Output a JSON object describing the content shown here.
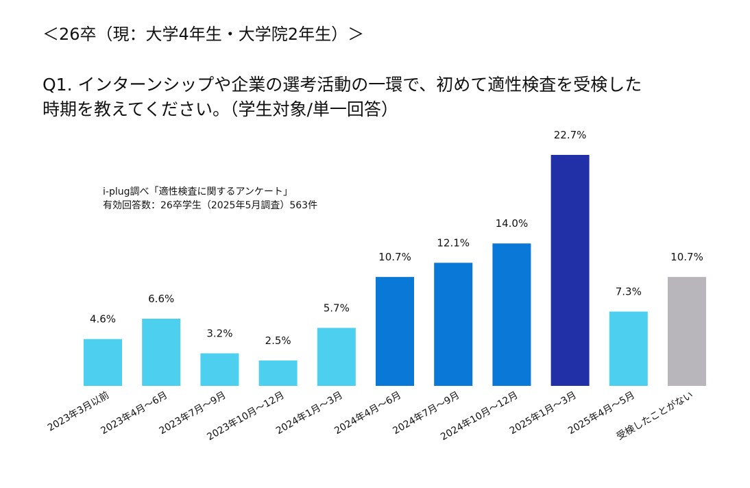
{
  "header": "＜26卒（現：大学4年生・大学院2年生）＞",
  "question_line1": "Q1. インターンシップや企業の選考活動の一環で、初めて適性検査を受検した",
  "question_line2": "時期を教えてください。（学生対象/単一回答）",
  "source_line1": "i-plug調べ「適性検査に関するアンケート」",
  "source_line2": "有効回答数：26卒学生（2025年5月調査）563件",
  "chart_data": {
    "type": "bar",
    "categories": [
      "2023年3月以前",
      "2023年4月～6月",
      "2023年7月～9月",
      "2023年10月～12月",
      "2024年1月～3月",
      "2024年4月～6月",
      "2024年7月～9月",
      "2024年10月～12月",
      "2025年1月～3月",
      "2025年4月～5月",
      "受検したことがない"
    ],
    "values": [
      4.6,
      6.6,
      3.2,
      2.5,
      5.7,
      10.7,
      12.1,
      14.0,
      22.7,
      7.3,
      10.7
    ],
    "value_labels": [
      "4.6%",
      "6.6%",
      "3.2%",
      "2.5%",
      "5.7%",
      "10.7%",
      "12.1%",
      "14.0%",
      "22.7%",
      "7.3%",
      "10.7%"
    ],
    "colors": [
      "#4dcff0",
      "#4dcff0",
      "#4dcff0",
      "#4dcff0",
      "#4dcff0",
      "#0a78d6",
      "#0a78d6",
      "#0a78d6",
      "#2230a8",
      "#4dcff0",
      "#b8b6bb"
    ],
    "unit": "%",
    "ylim": [
      0,
      22.7
    ],
    "grid": false,
    "legend": "none"
  }
}
